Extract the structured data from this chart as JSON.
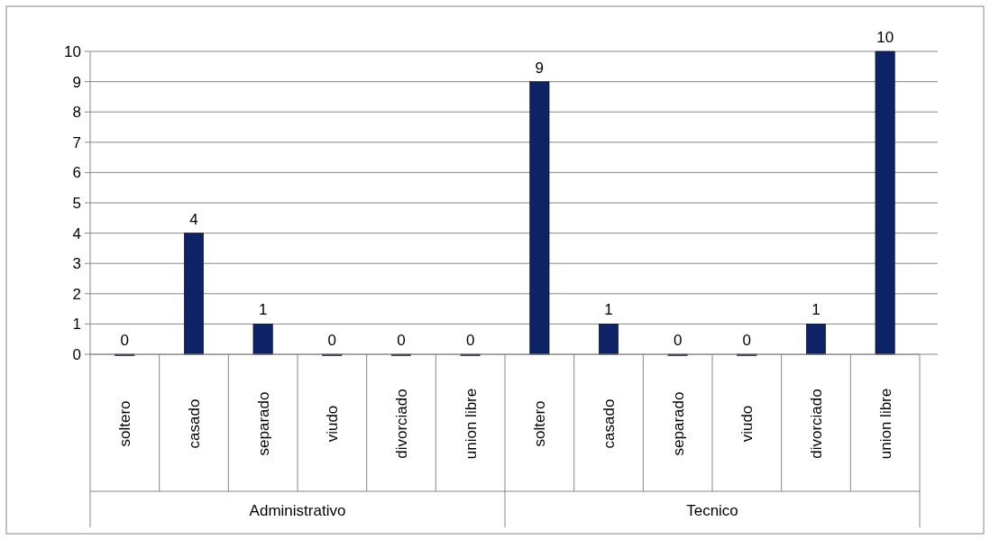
{
  "chart_data": {
    "type": "bar",
    "categories": [
      "soltero",
      "casado",
      "separado",
      "viudo",
      "divorciado",
      "union libre",
      "soltero",
      "casado",
      "separado",
      "viudo",
      "divorciado",
      "union libre"
    ],
    "values": [
      0,
      4,
      1,
      0,
      0,
      0,
      9,
      1,
      0,
      0,
      1,
      10
    ],
    "color": "#0d2366",
    "ylim": [
      0,
      10
    ],
    "yticks": [
      0,
      1,
      2,
      3,
      4,
      5,
      6,
      7,
      8,
      9,
      10
    ],
    "grid": "y",
    "data_labels": true,
    "annotations": [
      "Administrativo",
      "Tecnico"
    ]
  }
}
